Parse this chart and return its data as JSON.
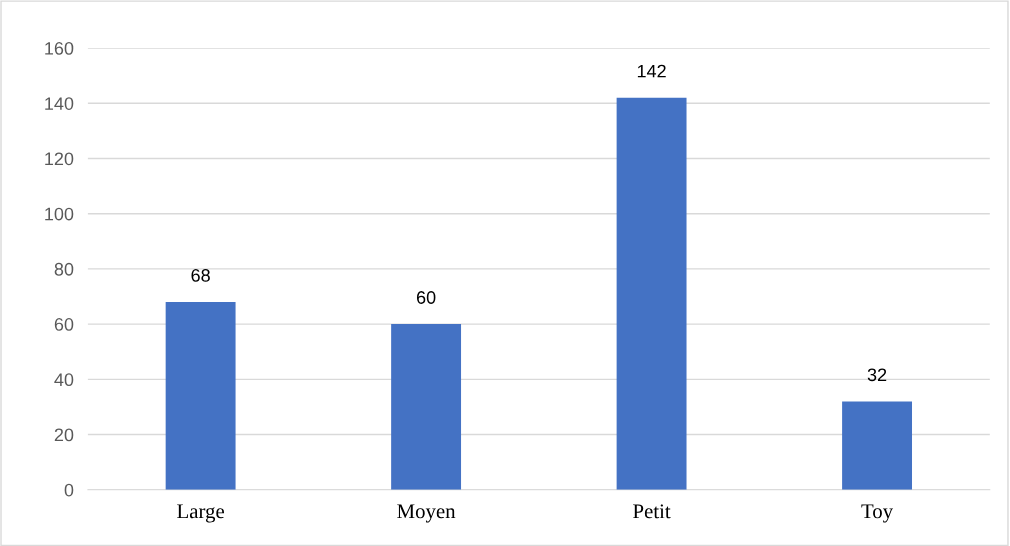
{
  "chart_data": {
    "type": "bar",
    "categories": [
      "Large",
      "Moyen",
      "Petit",
      "Toy"
    ],
    "values": [
      68,
      60,
      142,
      32
    ],
    "color": "#4472c4",
    "ylim": [
      0,
      160
    ],
    "yticks": [
      0,
      20,
      40,
      60,
      80,
      100,
      120,
      140,
      160
    ],
    "grid": "y",
    "data_labels": true
  }
}
